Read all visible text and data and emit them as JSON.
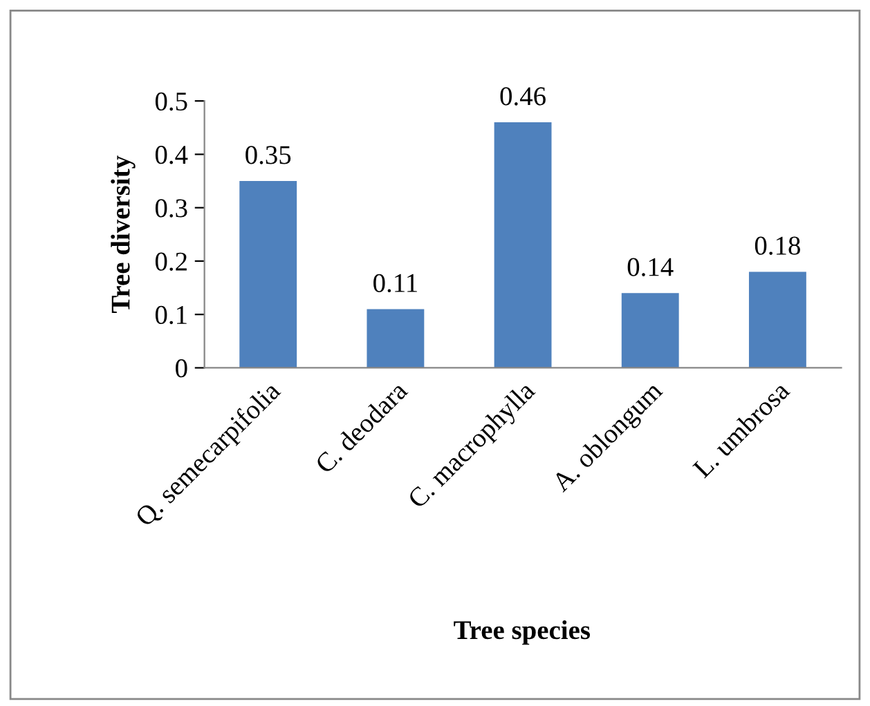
{
  "chart_data": {
    "type": "bar",
    "xlabel": "Tree species",
    "ylabel": "Tree diversity",
    "categories": [
      "Q. semecarpifolia",
      "C. deodara",
      "C. macrophylla",
      "A. oblongum",
      "L. umbrosa"
    ],
    "values": [
      0.35,
      0.11,
      0.46,
      0.14,
      0.18
    ],
    "color": "#4f81bd",
    "ylim": [
      0,
      0.5
    ],
    "yticks": [
      0,
      0.1,
      0.2,
      0.3,
      0.4,
      0.5
    ],
    "grid": false,
    "data_labels": true,
    "legend": false
  }
}
